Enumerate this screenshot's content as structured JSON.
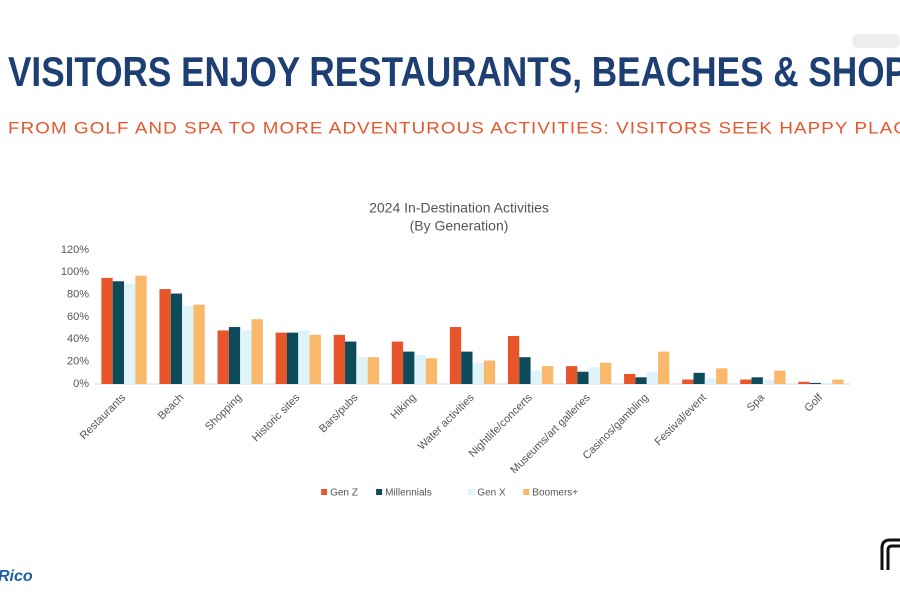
{
  "slide_title": "VISITORS ENJOY RESTAURANTS, BEACHES & SHOP",
  "slide_subtitle": "FROM GOLF AND SPA TO MORE ADVENTUROUS ACTIVITIES: VISITORS SEEK HAPPY PLAC",
  "logo_text": "Rico",
  "chart_data": {
    "type": "bar",
    "title": "2024 In-Destination Activities",
    "subtitle": "(By Generation)",
    "categories": [
      "Restaurants",
      "Beach",
      "Shopping",
      "Historic sites",
      "Bars/pubs",
      "Hiking",
      "Water activities",
      "Nightlife/concerts",
      "Museums/art galleries",
      "Casinos/gambling",
      "Festival/event",
      "Spa",
      "Golf"
    ],
    "series": [
      {
        "name": "Gen Z",
        "color": "#e8552a",
        "values": [
          95,
          85,
          48,
          46,
          44,
          38,
          51,
          43,
          16,
          9,
          4,
          4,
          2
        ]
      },
      {
        "name": "Millennials",
        "color": "#0d4a5a",
        "values": [
          92,
          81,
          51,
          46,
          38,
          29,
          29,
          24,
          11,
          6,
          10,
          6,
          1
        ]
      },
      {
        "name": "Gen X",
        "color": "#dff4f8",
        "values": [
          90,
          70,
          48,
          48,
          24,
          26,
          19,
          12,
          15,
          11,
          5,
          4,
          1
        ]
      },
      {
        "name": "Boomers+",
        "color": "#f9b86a",
        "values": [
          97,
          71,
          58,
          44,
          24,
          23,
          21,
          16,
          19,
          29,
          14,
          12,
          4
        ]
      }
    ],
    "ylim": [
      0,
      120
    ],
    "yticks": [
      {
        "value": 0,
        "label": "0%"
      },
      {
        "value": 20,
        "label": "20%"
      },
      {
        "value": 40,
        "label": "40%"
      },
      {
        "value": 60,
        "label": "60%"
      },
      {
        "value": 80,
        "label": "80%"
      },
      {
        "value": 100,
        "label": "100%"
      },
      {
        "value": 120,
        "label": "120%"
      }
    ],
    "grid": false,
    "legend": "bottom"
  }
}
